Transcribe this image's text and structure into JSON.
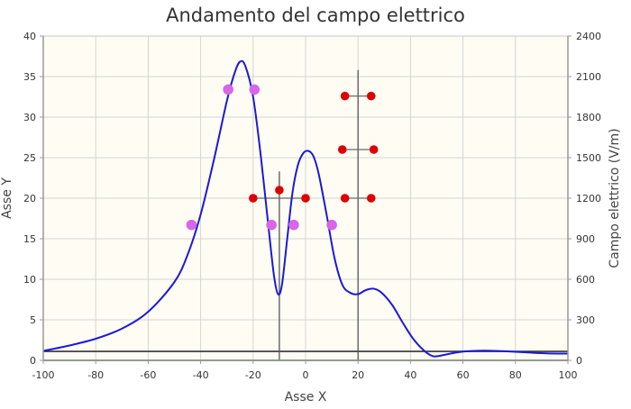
{
  "chart_data": {
    "type": "line",
    "title": "Andamento del campo elettrico",
    "xlabel": "Asse X",
    "ylabel": "Asse Y",
    "y2label": "Campo elettrico (V/m)",
    "xlim": [
      -100,
      100
    ],
    "ylim": [
      0,
      40
    ],
    "y2lim": [
      0,
      2400
    ],
    "x_ticks": [
      -100,
      -80,
      -60,
      -40,
      -20,
      0,
      20,
      40,
      60,
      80,
      100
    ],
    "y_ticks": [
      0,
      5,
      10,
      15,
      20,
      25,
      30,
      35,
      40
    ],
    "y2_ticks": [
      0,
      300,
      600,
      900,
      1200,
      1500,
      1800,
      2100,
      2400
    ],
    "grid": true,
    "colors": {
      "plot_background": "#fffdf3",
      "field_curve": "#1a1ad8",
      "positive_charge": "#dd0000",
      "negative_charge": "#d766e8",
      "axis_line": "#333333",
      "ground_line": "#7aa070"
    },
    "series": [
      {
        "axis": "y2",
        "points": [
          [
            -100,
            70
          ],
          [
            -90,
            110
          ],
          [
            -80,
            160
          ],
          [
            -70,
            235
          ],
          [
            -60,
            360
          ],
          [
            -50,
            580
          ],
          [
            -45,
            780
          ],
          [
            -40,
            1080
          ],
          [
            -35,
            1480
          ],
          [
            -30,
            1920
          ],
          [
            -27,
            2130
          ],
          [
            -25,
            2210
          ],
          [
            -23,
            2180
          ],
          [
            -20,
            1950
          ],
          [
            -17,
            1500
          ],
          [
            -14,
            960
          ],
          [
            -12,
            620
          ],
          [
            -10.5,
            490
          ],
          [
            -9,
            560
          ],
          [
            -7,
            900
          ],
          [
            -5,
            1240
          ],
          [
            -3,
            1440
          ],
          [
            -1,
            1530
          ],
          [
            1,
            1550
          ],
          [
            3,
            1510
          ],
          [
            5,
            1380
          ],
          [
            8,
            1080
          ],
          [
            11,
            760
          ],
          [
            14,
            560
          ],
          [
            17,
            500
          ],
          [
            20,
            490
          ],
          [
            23,
            520
          ],
          [
            26,
            530
          ],
          [
            29,
            500
          ],
          [
            33,
            410
          ],
          [
            37,
            280
          ],
          [
            41,
            160
          ],
          [
            45,
            75
          ],
          [
            48,
            35
          ],
          [
            50,
            30
          ],
          [
            54,
            45
          ],
          [
            60,
            65
          ],
          [
            68,
            72
          ],
          [
            75,
            68
          ],
          [
            85,
            58
          ],
          [
            92,
            52
          ],
          [
            100,
            50
          ]
        ]
      }
    ],
    "reference_lines": [
      {
        "axis": "y",
        "value": 1.1,
        "style": "dark"
      },
      {
        "axis": "y",
        "value": 0,
        "style": "ground"
      },
      {
        "axis": "x",
        "value": -10,
        "from_y": 0,
        "to_y": 23.3
      },
      {
        "axis": "x",
        "value": 20,
        "from_y": 0,
        "to_y": 35.8
      }
    ],
    "stems": [
      {
        "x1": -20,
        "x2": 0,
        "y": 20
      },
      {
        "x1": 15,
        "x2": 25,
        "y": 20
      },
      {
        "x1": 14,
        "x2": 26,
        "y": 26
      },
      {
        "x1": 15,
        "x2": 25,
        "y": 32.6
      }
    ],
    "charges": [
      {
        "sign": "negative",
        "x": -43.5,
        "y": 16.7
      },
      {
        "sign": "negative",
        "x": -29.5,
        "y": 33.4
      },
      {
        "sign": "negative",
        "x": -19.5,
        "y": 33.4
      },
      {
        "sign": "negative",
        "x": -13,
        "y": 16.7
      },
      {
        "sign": "negative",
        "x": -4.5,
        "y": 16.7
      },
      {
        "sign": "negative",
        "x": 10,
        "y": 16.7
      },
      {
        "sign": "positive",
        "x": -20,
        "y": 20
      },
      {
        "sign": "positive",
        "x": -10,
        "y": 21
      },
      {
        "sign": "positive",
        "x": 0,
        "y": 20
      },
      {
        "sign": "positive",
        "x": 15,
        "y": 20
      },
      {
        "sign": "positive",
        "x": 25,
        "y": 20
      },
      {
        "sign": "positive",
        "x": 14,
        "y": 26
      },
      {
        "sign": "positive",
        "x": 26,
        "y": 26
      },
      {
        "sign": "positive",
        "x": 15,
        "y": 32.6
      },
      {
        "sign": "positive",
        "x": 25,
        "y": 32.6
      }
    ]
  }
}
